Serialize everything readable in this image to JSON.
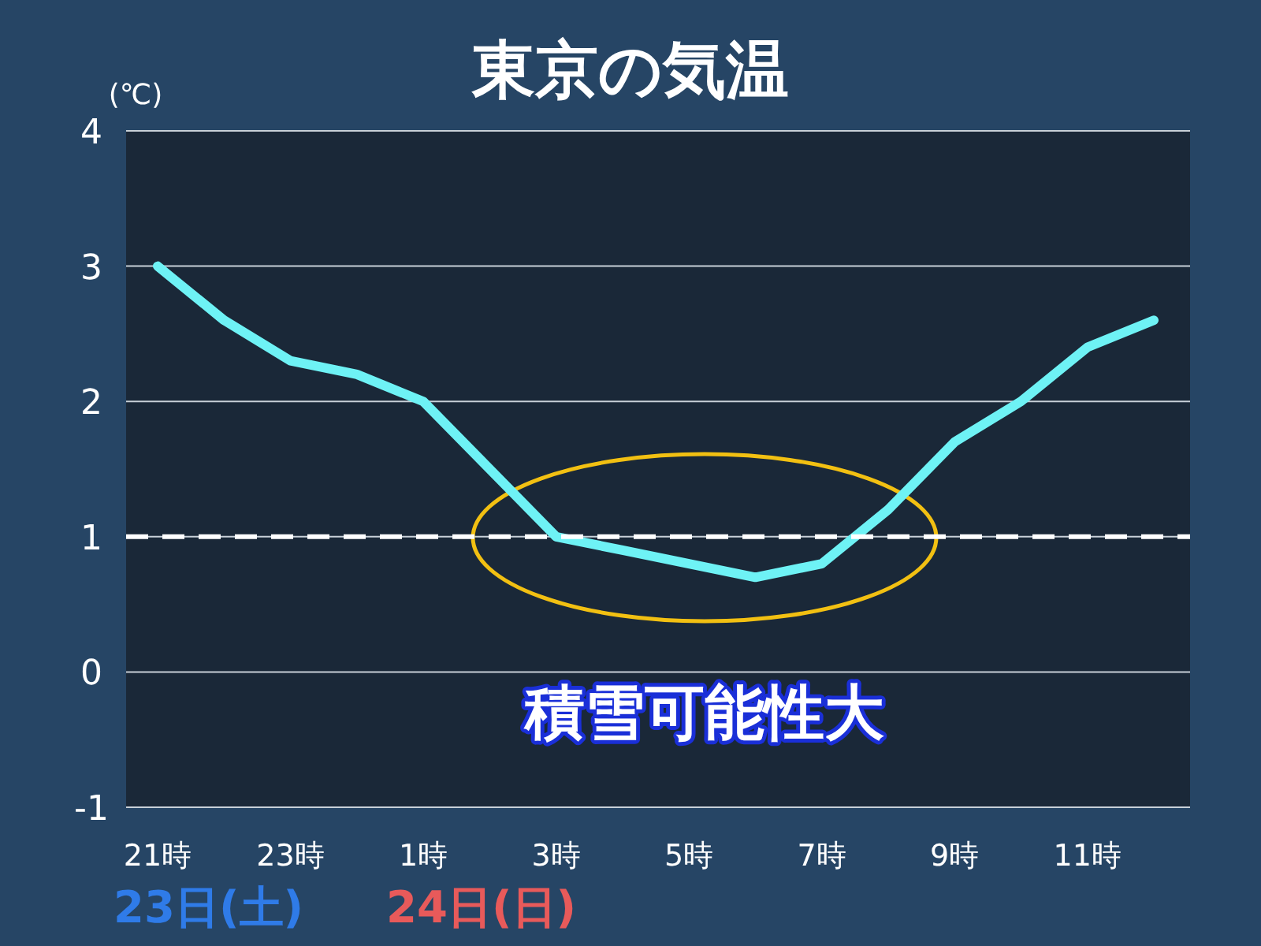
{
  "chart_data": {
    "type": "line",
    "title": "東京の気温",
    "ylabel": "(℃)",
    "categories": [
      "21時",
      null,
      "23時",
      null,
      "1時",
      null,
      "3時",
      null,
      "5時",
      null,
      "7時",
      null,
      "9時",
      null,
      "11時",
      null
    ],
    "series": [
      {
        "color": "#6ef2f5",
        "values": [
          3.0,
          2.6,
          2.3,
          2.2,
          2.0,
          1.5,
          1.0,
          0.9,
          0.8,
          0.7,
          0.8,
          1.2,
          1.7,
          2.0,
          2.4,
          2.6
        ]
      }
    ],
    "ylim": [
      -1,
      4
    ],
    "yticks": [
      -1,
      0,
      1,
      2,
      3,
      4
    ],
    "grid": "y",
    "marker": "none",
    "line_style": "solid",
    "ref_lines": [
      {
        "axis": "y",
        "value": 1,
        "color": "#ffffff",
        "line_style": "dashed"
      }
    ],
    "annotations": [
      "積雪可能性大",
      "23日(土)",
      "24日(日)"
    ]
  }
}
